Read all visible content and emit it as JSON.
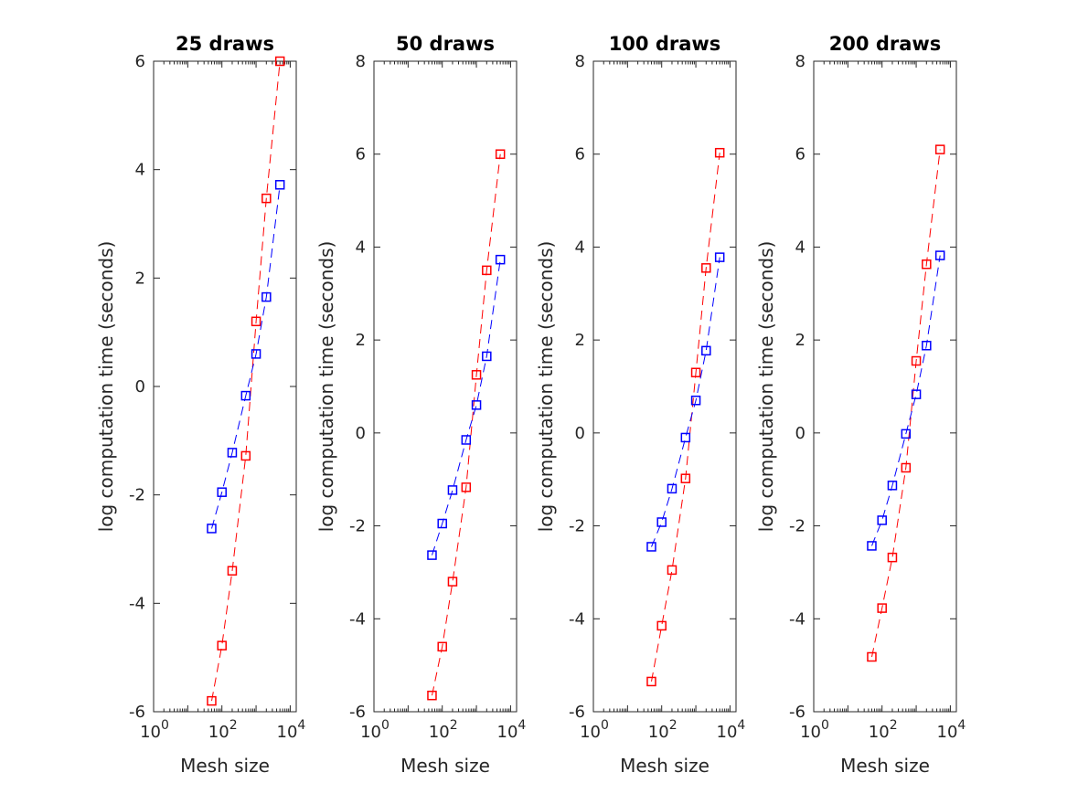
{
  "colors": {
    "series_red": "#ff0000",
    "series_blue": "#0000ff",
    "axes": "#262626",
    "background": "#ffffff"
  },
  "chart_data": [
    {
      "type": "scatter",
      "title": "25 draws",
      "xlabel": "Mesh size",
      "ylabel": "log computation time (seconds)",
      "xscale": "log",
      "xlim": [
        1,
        15000
      ],
      "xticks": [
        {
          "base": "10",
          "exp": "0",
          "value": 1
        },
        {
          "base": "10",
          "exp": "2",
          "value": 100
        },
        {
          "base": "10",
          "exp": "4",
          "value": 10000
        }
      ],
      "ylim": [
        -6,
        6
      ],
      "yticks": [
        -6,
        -4,
        -2,
        0,
        2,
        4,
        6
      ],
      "grid": false,
      "marker": "square",
      "line_style": "dashed",
      "series": [
        {
          "color": "#ff0000",
          "x": [
            50,
            100,
            200,
            500,
            1000,
            2000,
            5000
          ],
          "y": [
            -5.8,
            -4.78,
            -3.4,
            -1.28,
            1.2,
            3.47,
            6.0
          ]
        },
        {
          "color": "#0000ff",
          "x": [
            50,
            100,
            200,
            500,
            1000,
            2000,
            5000
          ],
          "y": [
            -2.62,
            -1.95,
            -1.22,
            -0.17,
            0.6,
            1.65,
            3.72
          ]
        }
      ]
    },
    {
      "type": "scatter",
      "title": "50 draws",
      "xlabel": "Mesh size",
      "ylabel": "log computation time (seconds)",
      "xscale": "log",
      "xlim": [
        1,
        15000
      ],
      "xticks": [
        {
          "base": "10",
          "exp": "0",
          "value": 1
        },
        {
          "base": "10",
          "exp": "2",
          "value": 100
        },
        {
          "base": "10",
          "exp": "4",
          "value": 10000
        }
      ],
      "ylim": [
        -6,
        8
      ],
      "yticks": [
        -6,
        -4,
        -2,
        0,
        2,
        4,
        6,
        8
      ],
      "grid": false,
      "marker": "square",
      "line_style": "dashed",
      "series": [
        {
          "color": "#ff0000",
          "x": [
            50,
            100,
            200,
            500,
            1000,
            2000,
            5000
          ],
          "y": [
            -5.65,
            -4.6,
            -3.2,
            -1.17,
            1.25,
            3.5,
            6.0
          ]
        },
        {
          "color": "#0000ff",
          "x": [
            50,
            100,
            200,
            500,
            1000,
            2000,
            5000
          ],
          "y": [
            -2.63,
            -1.95,
            -1.23,
            -0.15,
            0.6,
            1.65,
            3.73
          ]
        }
      ]
    },
    {
      "type": "scatter",
      "title": "100 draws",
      "xlabel": "Mesh size",
      "ylabel": "log computation time (seconds)",
      "xscale": "log",
      "xlim": [
        1,
        15000
      ],
      "xticks": [
        {
          "base": "10",
          "exp": "0",
          "value": 1
        },
        {
          "base": "10",
          "exp": "2",
          "value": 100
        },
        {
          "base": "10",
          "exp": "4",
          "value": 10000
        }
      ],
      "ylim": [
        -6,
        8
      ],
      "yticks": [
        -6,
        -4,
        -2,
        0,
        2,
        4,
        6,
        8
      ],
      "grid": false,
      "marker": "square",
      "line_style": "dashed",
      "series": [
        {
          "color": "#ff0000",
          "x": [
            50,
            100,
            200,
            500,
            1000,
            2000,
            5000
          ],
          "y": [
            -5.35,
            -4.15,
            -2.95,
            -0.98,
            1.3,
            3.55,
            6.03
          ]
        },
        {
          "color": "#0000ff",
          "x": [
            50,
            100,
            200,
            500,
            1000,
            2000,
            5000
          ],
          "y": [
            -2.45,
            -1.92,
            -1.2,
            -0.1,
            0.7,
            1.77,
            3.78
          ]
        }
      ]
    },
    {
      "type": "scatter",
      "title": "200 draws",
      "xlabel": "Mesh size",
      "ylabel": "log computation time (seconds)",
      "xscale": "log",
      "xlim": [
        1,
        15000
      ],
      "xticks": [
        {
          "base": "10",
          "exp": "0",
          "value": 1
        },
        {
          "base": "10",
          "exp": "2",
          "value": 100
        },
        {
          "base": "10",
          "exp": "4",
          "value": 10000
        }
      ],
      "ylim": [
        -6,
        8
      ],
      "yticks": [
        -6,
        -4,
        -2,
        0,
        2,
        4,
        6,
        8
      ],
      "grid": false,
      "marker": "square",
      "line_style": "dashed",
      "series": [
        {
          "color": "#ff0000",
          "x": [
            50,
            100,
            200,
            500,
            1000,
            2000,
            5000
          ],
          "y": [
            -4.82,
            -3.77,
            -2.68,
            -0.75,
            1.55,
            3.63,
            6.1
          ]
        },
        {
          "color": "#0000ff",
          "x": [
            50,
            100,
            200,
            500,
            1000,
            2000,
            5000
          ],
          "y": [
            -2.43,
            -1.88,
            -1.13,
            -0.02,
            0.83,
            1.88,
            3.82
          ]
        }
      ]
    }
  ]
}
